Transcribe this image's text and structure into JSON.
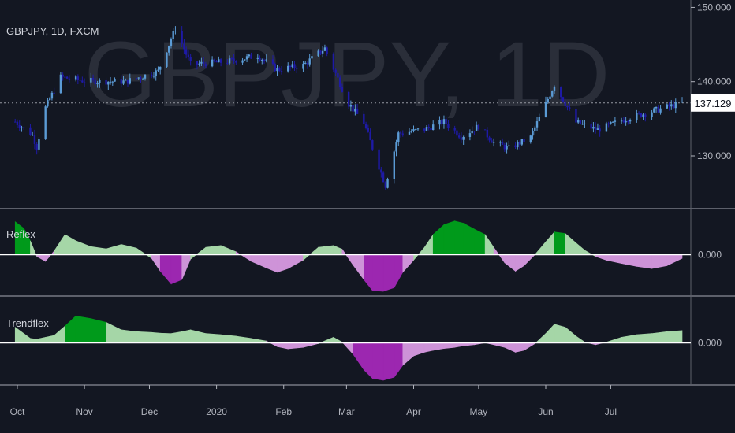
{
  "chart_data": [
    {
      "type": "candlestick",
      "title": "GBPJPY, 1D, FXCM",
      "watermark": "GBPJPY, 1D",
      "y_ticks": [
        "150.000",
        "140.000",
        "130.000"
      ],
      "y_tick_values": [
        150,
        140,
        130
      ],
      "ylim": [
        123,
        151
      ],
      "last_price": "137.129",
      "last_value": 137.129,
      "colors": {
        "up": "#5b9bd5",
        "down": "#1e1aa6",
        "background": "#131722"
      },
      "approx_close_path": [
        {
          "x": "2019-09-30",
          "y": 134.6
        },
        {
          "x": "2019-10-08",
          "y": 132.8
        },
        {
          "x": "2019-10-10",
          "y": 131.2
        },
        {
          "x": "2019-10-14",
          "y": 136.5
        },
        {
          "x": "2019-10-21",
          "y": 140.6
        },
        {
          "x": "2019-11-01",
          "y": 140.1
        },
        {
          "x": "2019-11-20",
          "y": 140.0
        },
        {
          "x": "2019-12-05",
          "y": 141.4
        },
        {
          "x": "2019-12-13",
          "y": 147.2
        },
        {
          "x": "2019-12-20",
          "y": 142.3
        },
        {
          "x": "2020-01-06",
          "y": 142.7
        },
        {
          "x": "2020-01-20",
          "y": 143.5
        },
        {
          "x": "2020-01-29",
          "y": 141.6
        },
        {
          "x": "2020-02-10",
          "y": 142.2
        },
        {
          "x": "2020-02-20",
          "y": 144.5
        },
        {
          "x": "2020-03-02",
          "y": 137.0
        },
        {
          "x": "2020-03-09",
          "y": 134.5
        },
        {
          "x": "2020-03-19",
          "y": 126.0
        },
        {
          "x": "2020-03-25",
          "y": 133.0
        },
        {
          "x": "2020-04-06",
          "y": 133.6
        },
        {
          "x": "2020-04-15",
          "y": 134.6
        },
        {
          "x": "2020-04-23",
          "y": 132.6
        },
        {
          "x": "2020-05-01",
          "y": 134.0
        },
        {
          "x": "2020-05-08",
          "y": 131.8
        },
        {
          "x": "2020-05-15",
          "y": 131.0
        },
        {
          "x": "2020-05-25",
          "y": 132.5
        },
        {
          "x": "2020-06-05",
          "y": 139.6
        },
        {
          "x": "2020-06-15",
          "y": 134.5
        },
        {
          "x": "2020-06-25",
          "y": 133.5
        },
        {
          "x": "2020-07-08",
          "y": 135.0
        },
        {
          "x": "2020-07-20",
          "y": 136.0
        },
        {
          "x": "2020-08-03",
          "y": 137.129
        }
      ]
    },
    {
      "type": "area",
      "name": "Reflex",
      "zero_label": "0.000",
      "ylim": [
        -1.0,
        1.0
      ],
      "colors": {
        "positive": "#a5d6a7",
        "positive_strong": "#009a1b",
        "negative": "#ce93d8",
        "negative_strong": "#9c27b0"
      },
      "x": [
        "2019-09-30",
        "2019-10-04",
        "2019-10-07",
        "2019-10-10",
        "2019-10-14",
        "2019-10-18",
        "2019-10-23",
        "2019-10-28",
        "2019-11-04",
        "2019-11-11",
        "2019-11-18",
        "2019-11-25",
        "2019-12-02",
        "2019-12-06",
        "2019-12-11",
        "2019-12-16",
        "2019-12-20",
        "2019-12-27",
        "2020-01-03",
        "2020-01-10",
        "2020-01-17",
        "2020-01-24",
        "2020-01-29",
        "2020-02-03",
        "2020-02-10",
        "2020-02-17",
        "2020-02-24",
        "2020-02-28",
        "2020-03-04",
        "2020-03-09",
        "2020-03-13",
        "2020-03-18",
        "2020-03-23",
        "2020-03-27",
        "2020-04-01",
        "2020-04-06",
        "2020-04-10",
        "2020-04-15",
        "2020-04-20",
        "2020-04-24",
        "2020-04-29",
        "2020-05-04",
        "2020-05-08",
        "2020-05-13",
        "2020-05-18",
        "2020-05-22",
        "2020-05-27",
        "2020-06-01",
        "2020-06-05",
        "2020-06-10",
        "2020-06-15",
        "2020-06-19",
        "2020-06-24",
        "2020-06-29",
        "2020-07-06",
        "2020-07-13",
        "2020-07-20",
        "2020-07-27",
        "2020-08-03"
      ],
      "values": [
        0.9,
        0.72,
        0.38,
        -0.05,
        -0.18,
        0.1,
        0.55,
        0.38,
        0.22,
        0.16,
        0.28,
        0.18,
        -0.1,
        -0.45,
        -0.8,
        -0.68,
        -0.12,
        0.2,
        0.25,
        0.08,
        -0.18,
        -0.36,
        -0.48,
        -0.38,
        -0.15,
        0.2,
        0.25,
        0.15,
        -0.28,
        -0.68,
        -0.98,
        -1.0,
        -0.9,
        -0.48,
        -0.15,
        0.2,
        0.55,
        0.82,
        0.92,
        0.86,
        0.7,
        0.55,
        0.2,
        -0.22,
        -0.45,
        -0.3,
        0.0,
        0.35,
        0.62,
        0.58,
        0.32,
        0.12,
        -0.05,
        -0.15,
        -0.24,
        -0.32,
        -0.38,
        -0.3,
        -0.1
      ]
    },
    {
      "type": "area",
      "name": "Trendflex",
      "zero_label": "0.000",
      "ylim": [
        -1.0,
        1.0
      ],
      "colors": {
        "positive": "#a5d6a7",
        "positive_strong": "#009a1b",
        "negative": "#ce93d8",
        "negative_strong": "#9c27b0"
      },
      "x": [
        "2019-09-30",
        "2019-10-04",
        "2019-10-07",
        "2019-10-10",
        "2019-10-14",
        "2019-10-18",
        "2019-10-23",
        "2019-10-28",
        "2019-11-04",
        "2019-11-11",
        "2019-11-18",
        "2019-11-25",
        "2019-12-02",
        "2019-12-06",
        "2019-12-11",
        "2019-12-16",
        "2019-12-20",
        "2019-12-27",
        "2020-01-03",
        "2020-01-10",
        "2020-01-17",
        "2020-01-24",
        "2020-01-29",
        "2020-02-03",
        "2020-02-10",
        "2020-02-17",
        "2020-02-24",
        "2020-02-28",
        "2020-03-04",
        "2020-03-09",
        "2020-03-13",
        "2020-03-18",
        "2020-03-23",
        "2020-03-27",
        "2020-04-01",
        "2020-04-06",
        "2020-04-10",
        "2020-04-15",
        "2020-04-20",
        "2020-04-24",
        "2020-04-29",
        "2020-05-04",
        "2020-05-08",
        "2020-05-13",
        "2020-05-18",
        "2020-05-22",
        "2020-05-27",
        "2020-06-01",
        "2020-06-05",
        "2020-06-10",
        "2020-06-15",
        "2020-06-19",
        "2020-06-24",
        "2020-06-29",
        "2020-07-06",
        "2020-07-13",
        "2020-07-20",
        "2020-07-27",
        "2020-08-03"
      ],
      "values": [
        0.42,
        0.25,
        0.12,
        0.1,
        0.15,
        0.2,
        0.45,
        0.72,
        0.65,
        0.55,
        0.35,
        0.3,
        0.28,
        0.26,
        0.25,
        0.3,
        0.35,
        0.25,
        0.22,
        0.18,
        0.12,
        0.05,
        -0.1,
        -0.16,
        -0.12,
        -0.02,
        0.15,
        0.02,
        -0.3,
        -0.72,
        -0.95,
        -1.0,
        -0.92,
        -0.6,
        -0.35,
        -0.25,
        -0.2,
        -0.15,
        -0.12,
        -0.08,
        -0.05,
        0.0,
        -0.05,
        -0.12,
        -0.25,
        -0.2,
        -0.02,
        0.25,
        0.5,
        0.42,
        0.18,
        0.02,
        -0.05,
        0.02,
        0.15,
        0.22,
        0.25,
        0.3,
        0.33
      ]
    }
  ],
  "time_axis": {
    "labels": [
      "Oct",
      "Nov",
      "Dec",
      "2020",
      "Feb",
      "Mar",
      "Apr",
      "May",
      "Jun",
      "Jul"
    ],
    "dates": [
      "2019-10-01",
      "2019-11-01",
      "2019-12-01",
      "2020-01-01",
      "2020-02-01",
      "2020-03-01",
      "2020-04-01",
      "2020-05-01",
      "2020-06-01",
      "2020-07-01"
    ],
    "range": [
      "2019-09-23",
      "2020-08-07"
    ]
  }
}
